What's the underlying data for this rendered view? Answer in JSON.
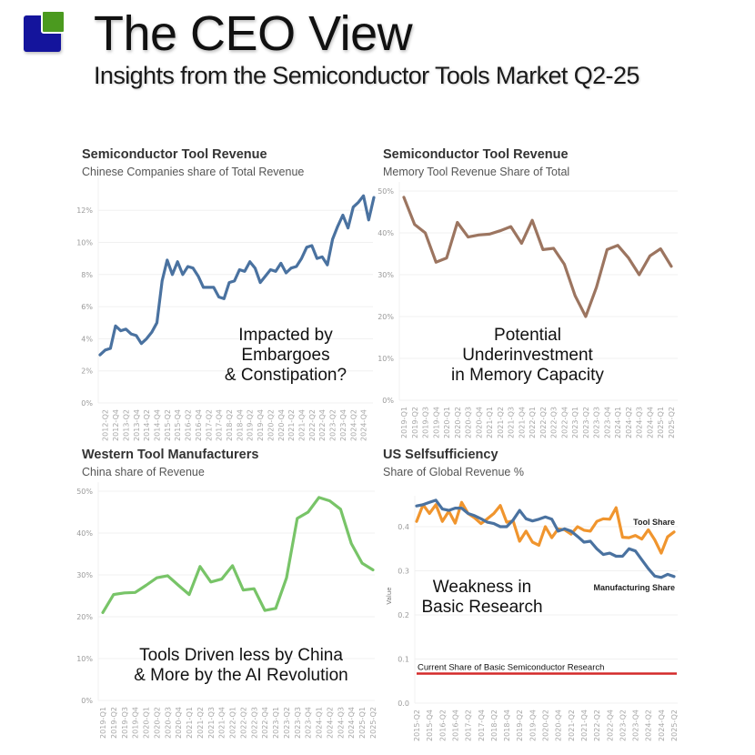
{
  "header": {
    "title": "The CEO View",
    "subtitle": "Insights from the Semiconductor Tools Market Q2-25",
    "logo_colors": {
      "primary": "#14149c",
      "accent": "#4b9a1f"
    }
  },
  "chart_data": [
    {
      "id": "china-companies-share",
      "type": "line",
      "title": "Semiconductor Tool Revenue",
      "subtitle": "Chinese Companies share of Total Revenue",
      "annotation": [
        "Impacted by",
        "Embargoes",
        "& Constipation?"
      ],
      "color": "#4a72a0",
      "xlabel": "",
      "ylabel": "",
      "ylim": [
        0,
        13
      ],
      "yticks": [
        0,
        2,
        4,
        6,
        8,
        10,
        12
      ],
      "ytick_labels": [
        "0%",
        "2%",
        "4%",
        "6%",
        "8%",
        "10%",
        "12%"
      ],
      "x_tick_labels": [
        "2012-Q2",
        "2012-Q4",
        "2013-Q2",
        "2013-Q4",
        "2014-Q2",
        "2014-Q4",
        "2015-Q2",
        "2015-Q4",
        "2016-Q2",
        "2016-Q4",
        "2017-Q2",
        "2017-Q4",
        "2018-Q2",
        "2018-Q4",
        "2019-Q2",
        "2019-Q4",
        "2020-Q2",
        "2020-Q4",
        "2021-Q2",
        "2021-Q4",
        "2022-Q2",
        "2022-Q4",
        "2023-Q2",
        "2023-Q4",
        "2024-Q2",
        "2024-Q4"
      ],
      "x_start": "2012-Q1",
      "x_end": "2025-Q2",
      "values": [
        3.0,
        3.3,
        3.4,
        4.8,
        4.5,
        4.6,
        4.3,
        4.2,
        3.7,
        4.0,
        4.4,
        5.0,
        7.6,
        8.9,
        8.0,
        8.8,
        8.0,
        8.5,
        8.4,
        7.9,
        7.2,
        7.2,
        7.2,
        6.6,
        6.5,
        7.5,
        7.6,
        8.3,
        8.2,
        8.8,
        8.4,
        7.5,
        7.9,
        8.3,
        8.2,
        8.7,
        8.1,
        8.4,
        8.5,
        9.0,
        9.7,
        9.8,
        9.0,
        9.1,
        8.6,
        10.2,
        11.0,
        11.7,
        10.9,
        12.2,
        12.5,
        12.9,
        11.4,
        12.8
      ],
      "grid": true
    },
    {
      "id": "memory-share",
      "type": "line",
      "title": "Semiconductor Tool Revenue",
      "subtitle": "Memory Tool Revenue Share of Total",
      "annotation": [
        "Potential",
        "Underinvestment",
        "in Memory Capacity"
      ],
      "color": "#9c7560",
      "xlabel": "",
      "ylabel": "",
      "ylim": [
        0,
        50
      ],
      "yticks": [
        0,
        10,
        20,
        30,
        40,
        50
      ],
      "ytick_labels": [
        "0%",
        "10%",
        "20%",
        "30%",
        "40%",
        "50%"
      ],
      "categories": [
        "2019-Q1",
        "2019-Q2",
        "2019-Q3",
        "2019-Q4",
        "2020-Q1",
        "2020-Q2",
        "2020-Q3",
        "2020-Q4",
        "2021-Q1",
        "2021-Q2",
        "2021-Q3",
        "2021-Q4",
        "2022-Q1",
        "2022-Q2",
        "2022-Q3",
        "2022-Q4",
        "2023-Q1",
        "2023-Q2",
        "2023-Q3",
        "2023-Q4",
        "2024-Q1",
        "2024-Q2",
        "2024-Q3",
        "2024-Q4",
        "2025-Q1",
        "2025-Q2"
      ],
      "values": [
        48.5,
        42.0,
        40.0,
        33.0,
        34.0,
        42.5,
        39.0,
        39.5,
        39.7,
        40.5,
        41.5,
        37.5,
        43.0,
        36.0,
        36.3,
        32.5,
        25.0,
        20.0,
        27.0,
        36.0,
        37.0,
        34.0,
        30.0,
        34.5,
        36.2,
        32.0
      ],
      "grid": true
    },
    {
      "id": "china-share-western",
      "type": "line",
      "title": "Western Tool Manufacturers",
      "subtitle": "China share of Revenue",
      "annotation": [
        "Tools Driven less by China",
        "& More by the AI Revolution"
      ],
      "color": "#78c468",
      "xlabel": "",
      "ylabel": "",
      "ylim": [
        0,
        50
      ],
      "yticks": [
        0,
        10,
        20,
        30,
        40,
        50
      ],
      "ytick_labels": [
        "0%",
        "10%",
        "20%",
        "30%",
        "40%",
        "50%"
      ],
      "categories": [
        "2019-Q1",
        "2019-Q2",
        "2019-Q3",
        "2019-Q4",
        "2020-Q1",
        "2020-Q2",
        "2020-Q3",
        "2020-Q4",
        "2021-Q1",
        "2021-Q2",
        "2021-Q3",
        "2021-Q4",
        "2022-Q1",
        "2022-Q2",
        "2022-Q3",
        "2022-Q4",
        "2023-Q1",
        "2023-Q2",
        "2023-Q3",
        "2023-Q4",
        "2024-Q1",
        "2024-Q2",
        "2024-Q3",
        "2024-Q4",
        "2025-Q1",
        "2025-Q2"
      ],
      "values": [
        21.0,
        25.3,
        25.7,
        25.8,
        27.5,
        29.3,
        29.8,
        27.5,
        25.3,
        32.0,
        28.3,
        29.0,
        32.2,
        26.4,
        26.7,
        21.5,
        22.0,
        29.3,
        43.5,
        45.0,
        48.5,
        47.7,
        45.7,
        37.5,
        32.8,
        31.2
      ],
      "grid": true
    },
    {
      "id": "us-selfsufficiency",
      "type": "line",
      "title": "US Selfsufficiency",
      "subtitle": "Share of Global Revenue %",
      "annotation": [
        "Weakness in",
        "Basic Research"
      ],
      "xlabel": "",
      "ylabel": "Value",
      "ylim": [
        0,
        0.46
      ],
      "yticks": [
        0.0,
        0.1,
        0.2,
        0.3,
        0.4
      ],
      "ytick_labels": [
        "0.0",
        "0.1",
        "0.2",
        "0.3",
        "0.4"
      ],
      "x_tick_labels": [
        "2015-Q2",
        "2015-Q4",
        "2016-Q2",
        "2016-Q4",
        "2017-Q2",
        "2017-Q4",
        "2018-Q2",
        "2018-Q4",
        "2019-Q2",
        "2019-Q4",
        "2020-Q2",
        "2020-Q4",
        "2021-Q2",
        "2021-Q4",
        "2022-Q2",
        "2022-Q4",
        "2023-Q2",
        "2023-Q4",
        "2024-Q2",
        "2024-Q4",
        "2025-Q2"
      ],
      "x_start": "2015-Q2",
      "x_end": "2025-Q2",
      "series": [
        {
          "name": "Tool Share",
          "color": "#f0952e",
          "values": [
            0.412,
            0.45,
            0.43,
            0.45,
            0.412,
            0.435,
            0.408,
            0.455,
            0.43,
            0.42,
            0.407,
            0.418,
            0.43,
            0.448,
            0.41,
            0.413,
            0.367,
            0.39,
            0.365,
            0.358,
            0.4,
            0.375,
            0.395,
            0.393,
            0.383,
            0.4,
            0.392,
            0.39,
            0.412,
            0.418,
            0.417,
            0.443,
            0.376,
            0.375,
            0.38,
            0.372,
            0.393,
            0.37,
            0.34,
            0.377,
            0.388
          ]
        },
        {
          "name": "Manufacturing Share",
          "color": "#4a72a0",
          "values": [
            0.447,
            0.45,
            0.455,
            0.46,
            0.44,
            0.437,
            0.442,
            0.442,
            0.43,
            0.425,
            0.418,
            0.41,
            0.407,
            0.4,
            0.4,
            0.415,
            0.437,
            0.418,
            0.413,
            0.417,
            0.422,
            0.417,
            0.39,
            0.395,
            0.39,
            0.378,
            0.365,
            0.367,
            0.35,
            0.337,
            0.34,
            0.333,
            0.333,
            0.35,
            0.345,
            0.325,
            0.305,
            0.288,
            0.285,
            0.292,
            0.287
          ]
        }
      ],
      "reference_line": {
        "label": "Current Share of Basic Semiconductor Research",
        "value": 0.067,
        "color": "#d42a2a"
      },
      "grid": true
    }
  ]
}
